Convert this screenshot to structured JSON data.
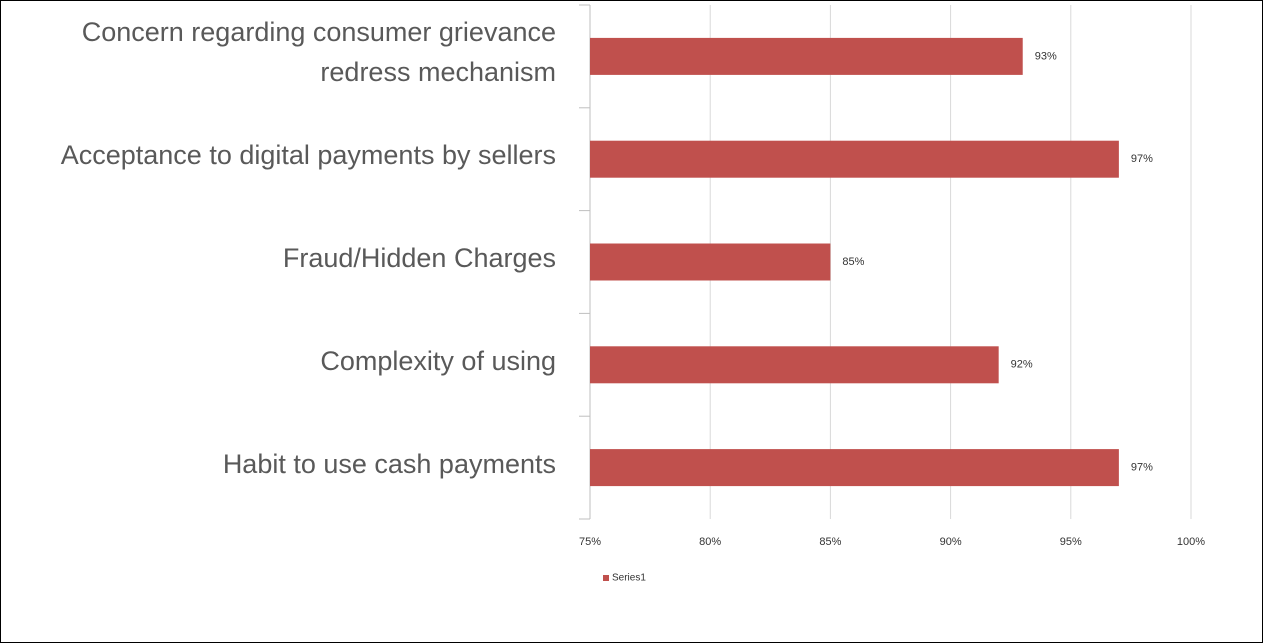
{
  "chart_data": {
    "type": "bar",
    "orientation": "horizontal",
    "categories": [
      "Concern regarding consumer grievance redress mechanism",
      "Acceptance to digital payments by sellers",
      "Fraud/Hidden Charges",
      "Complexity of using",
      "Habit to use cash payments"
    ],
    "series": [
      {
        "name": "Series1",
        "color": "#c0504d",
        "values": [
          93,
          97,
          85,
          92,
          97
        ],
        "value_labels": [
          "93%",
          "97%",
          "85%",
          "92%",
          "97%"
        ]
      }
    ],
    "xlim": [
      75,
      100
    ],
    "xticks": [
      {
        "value": 75,
        "label": "75%"
      },
      {
        "value": 80,
        "label": "80%"
      },
      {
        "value": 85,
        "label": "85%"
      },
      {
        "value": 90,
        "label": "90%"
      },
      {
        "value": 95,
        "label": "95%"
      },
      {
        "value": 100,
        "label": "100%"
      }
    ],
    "grid": true,
    "legend": "bottom"
  }
}
